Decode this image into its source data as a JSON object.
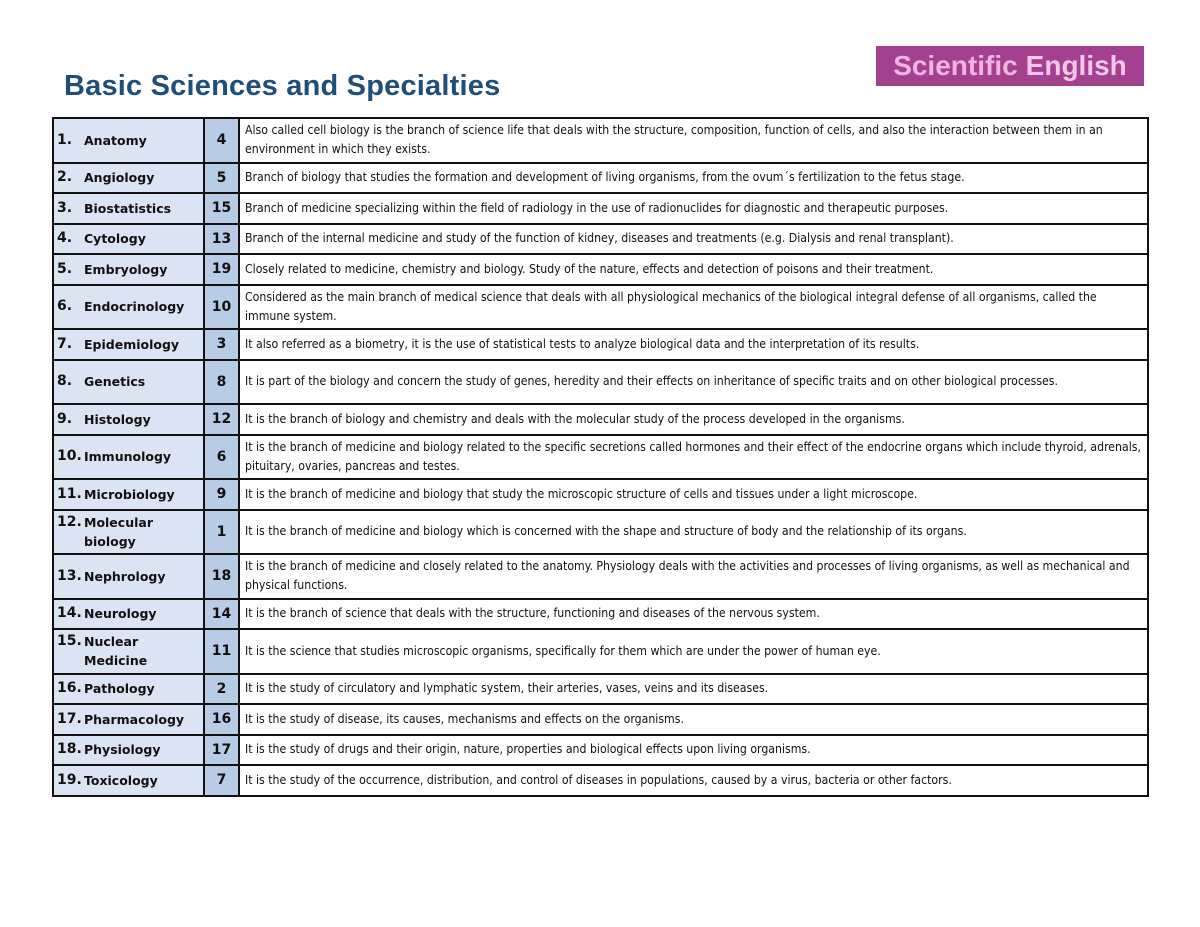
{
  "title": "Basic Sciences and Specialties",
  "logo": {
    "word1": "Scientific",
    "word2": "English",
    "bg": "#a3418f"
  },
  "rows": [
    {
      "n": "1.",
      "name": "Anatomy",
      "num": "4",
      "desc": "Also called cell biology is the branch of science life that deals with the structure, composition, function of cells, and also the interaction between them in an environment in which they exists."
    },
    {
      "n": "2.",
      "name": "Angiology",
      "num": "5",
      "desc": "Branch of biology that studies the formation and development of living organisms, from the ovum´s fertilization to the fetus stage."
    },
    {
      "n": "3.",
      "name": "Biostatistics",
      "num": "15",
      "desc": "Branch of medicine specializing within the field of radiology in the use of radionuclides for diagnostic and therapeutic purposes."
    },
    {
      "n": "4.",
      "name": "Cytology",
      "num": "13",
      "desc": "Branch of the internal medicine and study of the function of kidney, diseases and treatments (e.g. Dialysis and renal transplant)."
    },
    {
      "n": "5.",
      "name": "Embryology",
      "num": "19",
      "desc": "Closely related to medicine, chemistry and biology. Study of the nature, effects and detection of poisons and their treatment."
    },
    {
      "n": "6.",
      "name": "Endocrinology",
      "num": "10",
      "desc": "Considered as the main branch of medical science that deals with all physiological mechanics of the biological integral defense of all organisms, called the immune system."
    },
    {
      "n": "7.",
      "name": "Epidemiology",
      "num": "3",
      "desc": "It also referred as a biometry, it is the use of statistical tests to analyze biological data and the interpretation of its results."
    },
    {
      "n": "8.",
      "name": "Genetics",
      "num": "8",
      "desc": "It is part of the biology and concern the study of genes, heredity and their effects on inheritance of specific traits and on other biological processes."
    },
    {
      "n": "9.",
      "name": "Histology",
      "num": "12",
      "desc": "It is the branch of biology and chemistry and deals with the molecular study of the process developed in the organisms."
    },
    {
      "n": "10.",
      "name": "Immunology",
      "num": "6",
      "desc": "It is the branch of medicine and biology related to the specific secretions called hormones and their effect of the endocrine organs which include thyroid, adrenals, pituitary, ovaries, pancreas and testes."
    },
    {
      "n": "11.",
      "name": "Microbiology",
      "num": "9",
      "desc": "It is the branch of medicine and biology that study the microscopic structure of cells and tissues under a light microscope."
    },
    {
      "n": "12.",
      "name": "Molecular biology",
      "num": "1",
      "desc": "It is the branch of medicine and biology which is concerned with the shape and structure of body and the relationship of its organs."
    },
    {
      "n": "13.",
      "name": "Nephrology",
      "num": "18",
      "desc": "It is the branch of medicine and closely related to the anatomy. Physiology deals with the activities and processes of living organisms, as well as mechanical and physical functions."
    },
    {
      "n": "14.",
      "name": "Neurology",
      "num": "14",
      "desc": "It is the branch of science that deals with the structure, functioning and diseases of the nervous system."
    },
    {
      "n": "15.",
      "name": "Nuclear Medicine",
      "num": "11",
      "desc": "It is the science that studies microscopic organisms, specifically for them which are under the power of human eye."
    },
    {
      "n": "16.",
      "name": "Pathology",
      "num": "2",
      "desc": "It is the study of circulatory and lymphatic system, their arteries, vases, veins and its diseases."
    },
    {
      "n": "17.",
      "name": "Pharmacology",
      "num": "16",
      "desc": "It is the study of disease, its causes, mechanisms and effects on the organisms."
    },
    {
      "n": "18.",
      "name": "Physiology",
      "num": "17",
      "desc": "It is the study of drugs and their origin, nature, properties and biological effects upon living organisms."
    },
    {
      "n": "19.",
      "name": "Toxicology",
      "num": "7",
      "desc": "It is the study of the occurrence, distribution, and control of diseases in populations, caused by a virus, bacteria or other factors."
    }
  ]
}
